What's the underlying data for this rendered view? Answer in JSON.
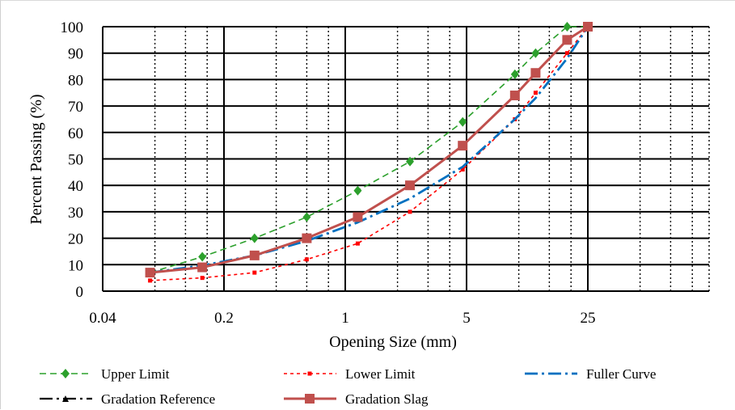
{
  "chart_data": {
    "type": "line",
    "title": "",
    "xlabel": "Opening Size (mm)",
    "ylabel": "Percent Passing (%)",
    "x_scale": "log",
    "xlim": [
      0.04,
      125
    ],
    "ylim": [
      0,
      100
    ],
    "x_tick_labels": [
      "0.04",
      "0.2",
      "1",
      "5",
      "25"
    ],
    "x_tick_values": [
      0.04,
      0.2,
      1,
      5,
      25
    ],
    "y_ticks": [
      0,
      10,
      20,
      30,
      40,
      50,
      60,
      70,
      80,
      90,
      100
    ],
    "grid": true,
    "legend_position": "bottom",
    "series": [
      {
        "name": "Upper Limit",
        "color": "#2ca02c",
        "marker": "diamond",
        "line_style": "dashed",
        "x": [
          0.075,
          0.15,
          0.3,
          0.6,
          1.18,
          2.36,
          4.75,
          9.5,
          12.5,
          19,
          25
        ],
        "y": [
          7,
          13,
          20,
          28,
          38,
          49,
          64,
          82,
          90,
          100,
          100
        ]
      },
      {
        "name": "Lower Limit",
        "color": "#ff0000",
        "marker": "square",
        "line_style": "dotted",
        "x": [
          0.075,
          0.15,
          0.3,
          0.6,
          1.18,
          2.36,
          4.75,
          9.5,
          12.5,
          19,
          25
        ],
        "y": [
          4,
          5,
          7,
          12,
          18,
          30,
          46,
          65,
          75,
          90,
          100
        ]
      },
      {
        "name": "Fuller Curve",
        "color": "#0070c0",
        "marker": "none",
        "line_style": "dash-dot",
        "x": [
          0.075,
          0.15,
          0.3,
          0.6,
          1.18,
          2.36,
          4.75,
          9.5,
          12.5,
          19,
          25
        ],
        "y": [
          7,
          9.7,
          13.5,
          19,
          26,
          35,
          47,
          65,
          73,
          88,
          100
        ]
      },
      {
        "name": "Gradation Reference",
        "color": "#000000",
        "marker": "triangle",
        "line_style": "dash-dot",
        "x": [
          0.075,
          0.15,
          0.3,
          0.6,
          1.18,
          2.36,
          4.75,
          9.5,
          12.5,
          19,
          25
        ],
        "y": [
          7,
          9,
          13.5,
          20,
          28,
          40,
          55,
          74,
          82.5,
          95,
          100
        ]
      },
      {
        "name": "Gradation Slag",
        "color": "#c0504d",
        "marker": "square",
        "line_style": "solid",
        "x": [
          0.075,
          0.15,
          0.3,
          0.6,
          1.18,
          2.36,
          4.75,
          9.5,
          12.5,
          19,
          25
        ],
        "y": [
          7,
          9,
          13.5,
          20,
          28,
          40,
          55,
          74,
          82.5,
          95,
          100
        ]
      }
    ]
  }
}
